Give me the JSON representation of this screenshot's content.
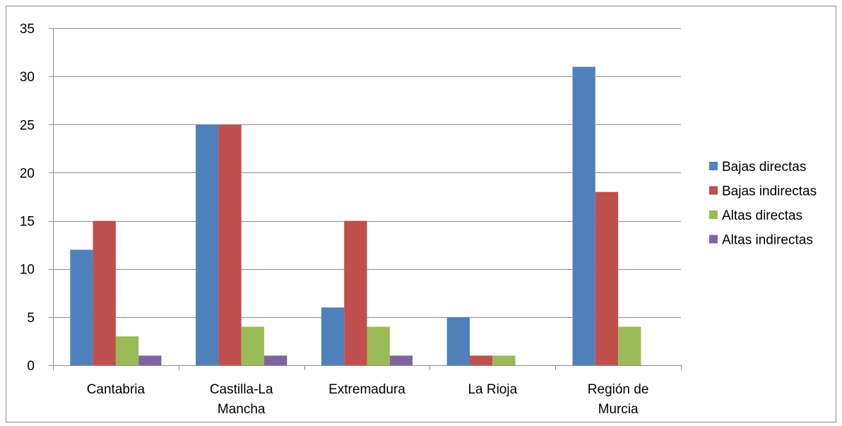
{
  "chart_data": {
    "type": "bar",
    "categories": [
      [
        "Cantabria"
      ],
      [
        "Castilla-La",
        "Mancha"
      ],
      [
        "Extremadura"
      ],
      [
        "La Rioja"
      ],
      [
        "Región de",
        "Murcia"
      ]
    ],
    "series": [
      {
        "name": "Bajas directas",
        "color": "#4f81bd",
        "values": [
          12,
          25,
          6,
          5,
          31
        ]
      },
      {
        "name": "Bajas indirectas",
        "color": "#c0504d",
        "values": [
          15,
          25,
          15,
          1,
          18
        ]
      },
      {
        "name": "Altas directas",
        "color": "#9bbb59",
        "values": [
          3,
          4,
          4,
          1,
          4
        ]
      },
      {
        "name": "Altas indirectas",
        "color": "#8064a2",
        "values": [
          1,
          1,
          1,
          0,
          0
        ]
      }
    ],
    "ylim": [
      0,
      35
    ],
    "yticks": [
      0,
      5,
      10,
      15,
      20,
      25,
      30,
      35
    ],
    "grid": true,
    "legend": "right"
  }
}
